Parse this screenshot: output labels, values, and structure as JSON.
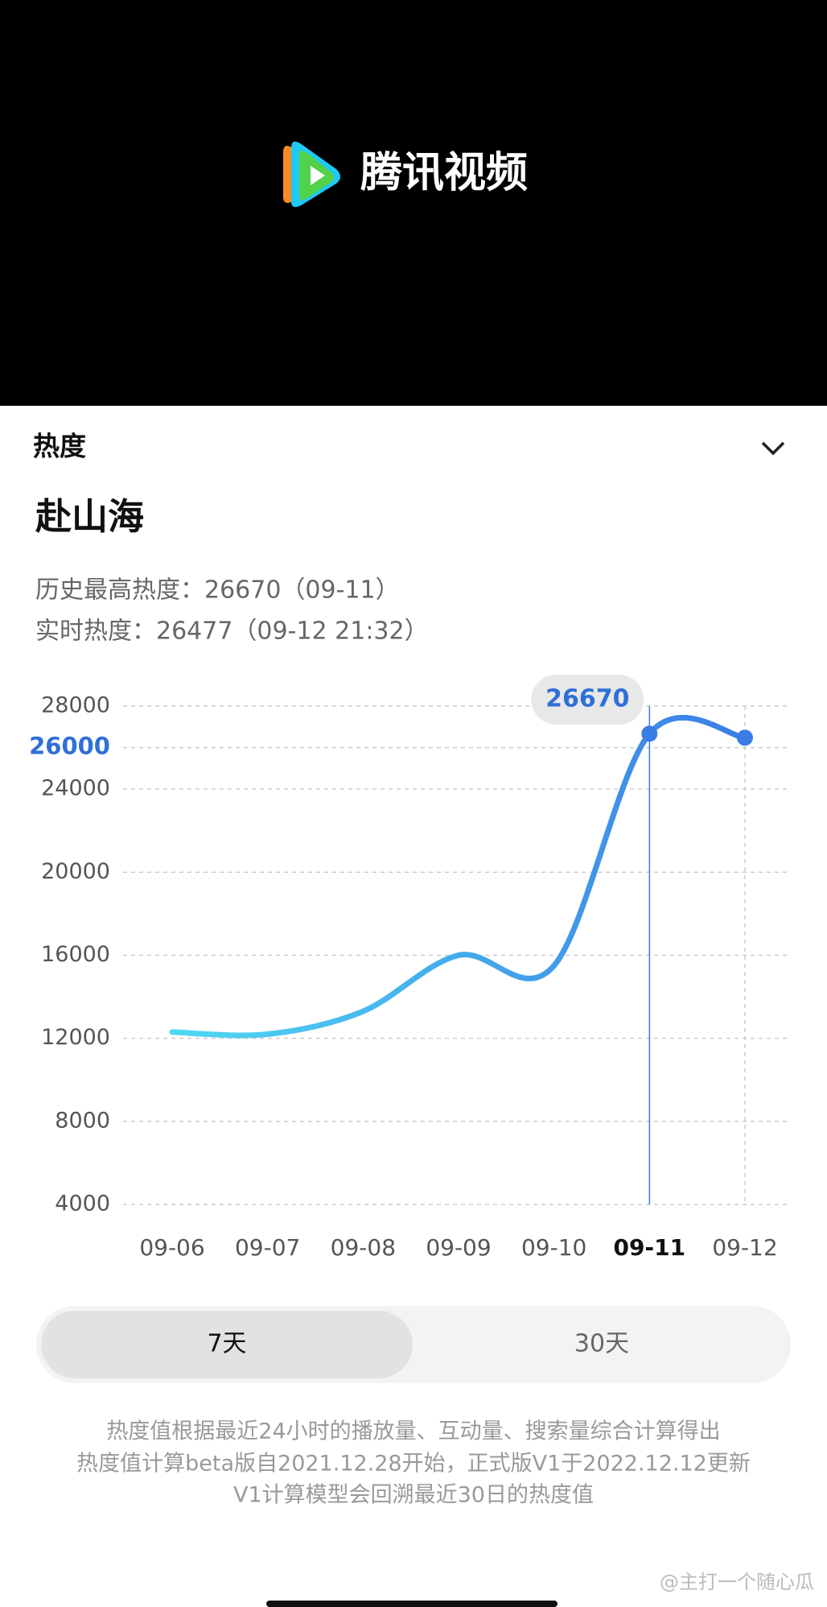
{
  "header": {
    "brand": "腾讯视频"
  },
  "panel": {
    "section": "热度",
    "show_title": "赴山海",
    "stats": [
      "历史最高热度：26670（09-11）",
      "实时热度：26477（09-12 21:32）"
    ]
  },
  "chart_data": {
    "type": "line",
    "categories": [
      "09-06",
      "09-07",
      "09-08",
      "09-09",
      "09-10",
      "09-11",
      "09-12"
    ],
    "values": [
      12300,
      12200,
      13300,
      16000,
      15500,
      26670,
      26477
    ],
    "colors": [
      "#4fd8f2",
      "#3b7de6"
    ],
    "ylim": [
      4000,
      28000
    ],
    "yticks": [
      4000,
      8000,
      12000,
      16000,
      20000,
      24000,
      26000,
      28000
    ],
    "highlight_ytick": 26000,
    "selected": "09-11",
    "grid": true
  },
  "tabs": [
    "7天",
    "30天"
  ],
  "notes": [
    "热度值根据最近24小时的播放量、互动量、搜索量综合计算得出",
    "热度值计算beta版自2021.12.28开始，正式版V1于2022.12.12更新",
    "V1计算模型会回溯最近30日的热度值"
  ],
  "watermark": "@主打一个随心瓜"
}
